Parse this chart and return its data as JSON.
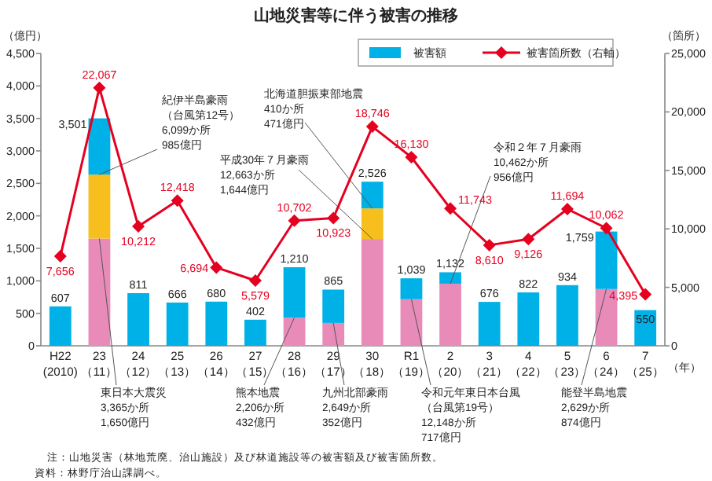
{
  "chart_data": {
    "type": "bar",
    "title": "山地災害等に伴う被害の推移",
    "ylabel": "（億円）",
    "y2label": "（箇所）",
    "xlabel": "（年）",
    "categories": [
      "H22\n(2010)",
      "23\n（11）",
      "24\n（12）",
      "25\n（13）",
      "26\n（14）",
      "27\n（15）",
      "28\n（16）",
      "29\n（17）",
      "30\n（18）",
      "R1\n（19）",
      "2\n（20）",
      "3\n（21）",
      "4\n（22）",
      "5\n（23）",
      "6\n（24）",
      "7\n（25）"
    ],
    "stacked": true,
    "series": [
      {
        "color": "#e98bb9",
        "values": [
          null,
          1650,
          null,
          null,
          null,
          null,
          432,
          352,
          1644,
          717,
          956,
          null,
          null,
          null,
          874,
          null
        ]
      },
      {
        "color": "#f6bf1e",
        "values": [
          null,
          985,
          null,
          null,
          null,
          null,
          null,
          null,
          471,
          null,
          null,
          null,
          null,
          null,
          null,
          null
        ]
      },
      {
        "name": "被害額",
        "color": "#00b1e7",
        "values": [
          607,
          866,
          811,
          666,
          680,
          402,
          778,
          513,
          411,
          322,
          176,
          676,
          822,
          934,
          885,
          550
        ]
      },
      {
        "name": "被害箇所数（右軸）",
        "type": "line",
        "axis": "y2",
        "color": "#e50020",
        "marker": "diamond",
        "values": [
          7656,
          22067,
          10212,
          12418,
          6694,
          5579,
          10702,
          10923,
          18746,
          16130,
          11743,
          8610,
          9126,
          11694,
          10062,
          4395
        ],
        "value_labels": [
          "7,656",
          "22,067",
          "10,212",
          "12,418",
          "6,694",
          "5,579",
          "10,702",
          "10,923",
          "18,746",
          "16,130",
          "11,743",
          "8,610",
          "9,126",
          "11,694",
          "10,062",
          "4,395"
        ]
      }
    ],
    "totals": [
      "607",
      "3,501",
      "811",
      "666",
      "680",
      "402",
      "1,210",
      "865",
      "2,526",
      "1,039",
      "1,132",
      "676",
      "822",
      "934",
      "1,759",
      "550"
    ],
    "ylim": [
      0,
      4500
    ],
    "yticks": [
      0,
      {
        "value": 500,
        "label": "500"
      },
      {
        "value": 1000,
        "label": "1,000"
      },
      {
        "value": 1500,
        "label": "1,500"
      },
      {
        "value": 2000,
        "label": "2,000"
      },
      {
        "value": 2500,
        "label": "2,500"
      },
      {
        "value": 3000,
        "label": "3,000"
      },
      {
        "value": 3500,
        "label": "3,500"
      },
      {
        "value": 4000,
        "label": "4,000"
      },
      {
        "value": 4500,
        "label": "4,500"
      }
    ],
    "y2lim": [
      0,
      25000
    ],
    "y2ticks": [
      0,
      {
        "value": 5000,
        "label": "5,000"
      },
      {
        "value": 10000,
        "label": "10,000"
      },
      {
        "value": 15000,
        "label": "15,000"
      },
      {
        "value": 20000,
        "label": "20,000"
      },
      {
        "value": 25000,
        "label": "25,000"
      }
    ],
    "legend": "top right",
    "annotations": [
      {
        "text": "紀伊半島豪雨（台風第12号）\n6,099か所\n985億円",
        "x": "23\n（11）",
        "y": 2635
      },
      {
        "text": "北海道胆振東部地震\n410か所\n471億円",
        "x": "30\n（18）",
        "y": 2115
      },
      {
        "text": "平成30年７月豪雨\n12,663か所\n1,644億円",
        "x": "30\n（18）",
        "y": 1644
      },
      {
        "text": "令和２年７月豪雨\n10,462か所\n956億円",
        "x": "2\n（20）",
        "y": 956
      },
      {
        "text": "東日本大震災\n3,365か所\n1,650億円",
        "x": "23\n（11）",
        "y": 1650
      },
      {
        "text": "熊本地震\n2,206か所\n432億円",
        "x": "28\n（16）",
        "y": 432
      },
      {
        "text": "九州北部豪雨\n2,649か所\n352億円",
        "x": "29\n（17）",
        "y": 352
      },
      {
        "text": "令和元年東日本台風（台風第19号）\n12,148か所\n717億円",
        "x": "R1\n（19）",
        "y": 717
      },
      {
        "text": "能登半島地震\n2,629か所\n874億円",
        "x": "6\n（24）",
        "y": 874
      },
      "注：山地災害（林地荒廃、治山施設）及び林道施設等の被害額及び被害箇所数。",
      "資料：林野庁治山課調べ。"
    ]
  }
}
